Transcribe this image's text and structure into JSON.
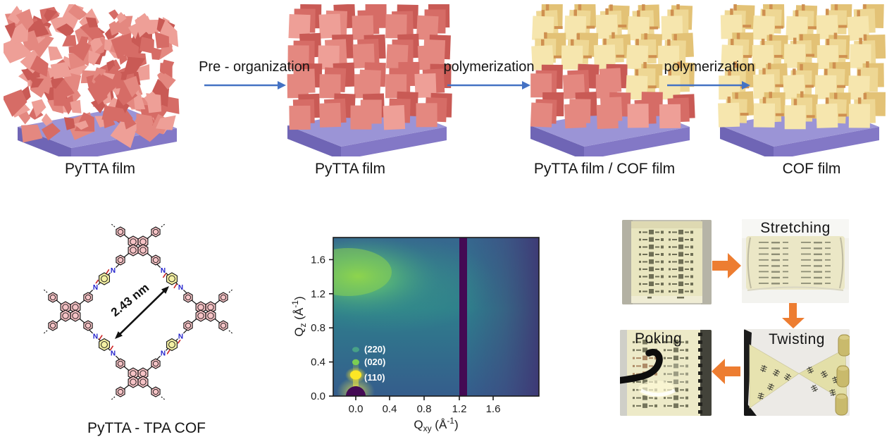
{
  "process_flow": {
    "arrow_color": "#4472c4",
    "substrate_top": "#9b94d6",
    "substrate_right": "#8378c6",
    "substrate_front": "#6f65b5",
    "red_palette": [
      "#c95a55",
      "#d66c66",
      "#e48880",
      "#ee9f97"
    ],
    "yellow_palette": [
      "#e3c276",
      "#eed794",
      "#f6e6ae"
    ],
    "connector_color": "#cf9050",
    "steps": [
      {
        "caption": "PyTTA film",
        "style": "disordered-red-flakes"
      },
      {
        "caption": "PyTTA film",
        "style": "vertically-aligned-red-plates"
      },
      {
        "caption": "PyTTA film / COF film",
        "style": "mixed-yellow-top-red-bottom-plates"
      },
      {
        "caption": "COF film",
        "style": "linked-yellow-plates"
      }
    ],
    "transitions": [
      {
        "label": "Pre - organization"
      },
      {
        "label": "polymerization"
      },
      {
        "label": "polymerization"
      }
    ]
  },
  "structure_panel": {
    "caption": "PyTTA - TPA COF",
    "pore_label": "2.43 nm",
    "nitrogen": "N",
    "ring_pink": "#f6c3c6",
    "ring_yellow": "#f4f0a4",
    "nitrogen_color": "#2020cc",
    "imine_color": "#cc2222",
    "bond_color": "#111111"
  },
  "chart_data": {
    "type": "heatmap",
    "title": "GIWAXS 2D scattering pattern of the COF film",
    "colormap": "viridis",
    "xlabel_parts": {
      "base": "Q",
      "sub": "xy",
      "unit_open": " (Å",
      "exp": "-1",
      "unit_close": ")"
    },
    "ylabel_parts": {
      "base": "Q",
      "sub": "z",
      "unit_open": " (Å",
      "exp": "-1",
      "unit_close": ")"
    },
    "x_ticks": [
      "0.0",
      "0.4",
      "0.8",
      "1.2",
      "1.6"
    ],
    "y_ticks": [
      "0.0",
      "0.4",
      "0.8",
      "1.2",
      "1.6"
    ],
    "xlim": [
      -0.26,
      2.13
    ],
    "ylim": [
      0,
      1.87
    ],
    "peaks": [
      {
        "label": "(220)",
        "qxy": 0.0,
        "qz": 0.55,
        "intensity": "weak"
      },
      {
        "label": "(020)",
        "qxy": 0.0,
        "qz": 0.4,
        "intensity": "medium"
      },
      {
        "label": "(110)",
        "qxy": 0.0,
        "qz": 0.25,
        "intensity": "strong"
      }
    ],
    "features": [
      {
        "name": "diffuse-pi-stacking-halo",
        "qz_center": 1.4,
        "qxy_range": [
          -0.26,
          0.7
        ]
      },
      {
        "name": "detector-gap-stripe",
        "qxy_range": [
          1.21,
          1.3
        ]
      },
      {
        "name": "beamstop",
        "qxy": 0.0,
        "qz": 0.0
      }
    ]
  },
  "flex_tests": {
    "arrow_color": "#ed7d31",
    "photos": [
      {
        "label": "",
        "name": "device-film-array"
      },
      {
        "label": "Stretching"
      },
      {
        "label": "Twisting"
      },
      {
        "label": "Poking"
      }
    ]
  }
}
